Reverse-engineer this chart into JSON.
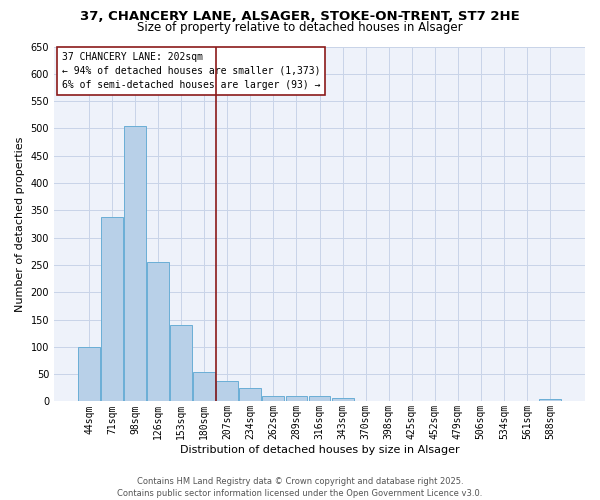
{
  "title_line1": "37, CHANCERY LANE, ALSAGER, STOKE-ON-TRENT, ST7 2HE",
  "title_line2": "Size of property relative to detached houses in Alsager",
  "xlabel": "Distribution of detached houses by size in Alsager",
  "ylabel": "Number of detached properties",
  "categories": [
    "44sqm",
    "71sqm",
    "98sqm",
    "126sqm",
    "153sqm",
    "180sqm",
    "207sqm",
    "234sqm",
    "262sqm",
    "289sqm",
    "316sqm",
    "343sqm",
    "370sqm",
    "398sqm",
    "425sqm",
    "452sqm",
    "479sqm",
    "506sqm",
    "534sqm",
    "561sqm",
    "588sqm"
  ],
  "values": [
    100,
    338,
    505,
    255,
    140,
    53,
    37,
    24,
    10,
    10,
    10,
    6,
    0,
    0,
    0,
    0,
    0,
    0,
    0,
    0,
    5
  ],
  "bar_color": "#b8d0e8",
  "bar_edge_color": "#6aaed6",
  "vline_color": "#8b1a1a",
  "annotation_title": "37 CHANCERY LANE: 202sqm",
  "annotation_line1": "← 94% of detached houses are smaller (1,373)",
  "annotation_line2": "6% of semi-detached houses are larger (93) →",
  "annotation_box_color": "#8b1a1a",
  "ylim_max": 650,
  "yticks": [
    0,
    50,
    100,
    150,
    200,
    250,
    300,
    350,
    400,
    450,
    500,
    550,
    600,
    650
  ],
  "grid_color": "#c8d4e8",
  "background_color": "#eef2fa",
  "footer_line1": "Contains HM Land Registry data © Crown copyright and database right 2025.",
  "footer_line2": "Contains public sector information licensed under the Open Government Licence v3.0.",
  "title_fontsize": 9.5,
  "subtitle_fontsize": 8.5,
  "axis_label_fontsize": 8,
  "tick_fontsize": 7,
  "annotation_fontsize": 7,
  "footer_fontsize": 6
}
